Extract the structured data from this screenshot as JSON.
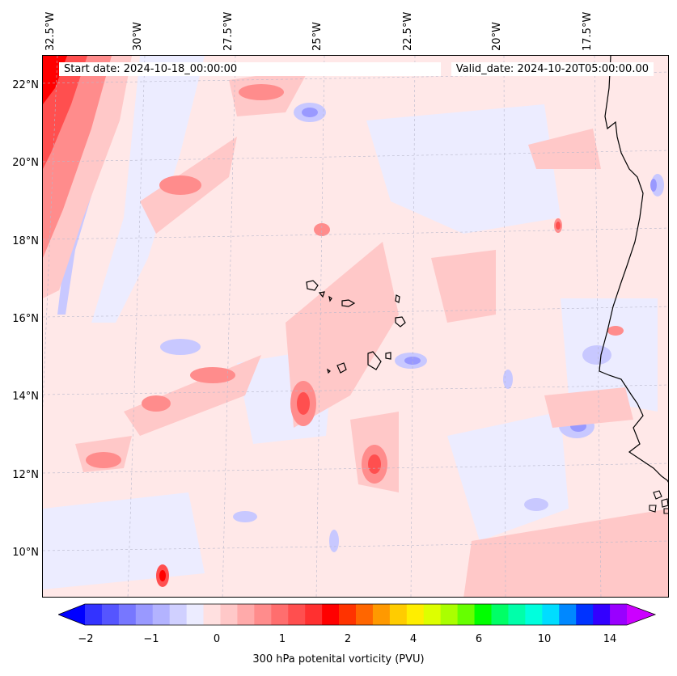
{
  "map": {
    "start_label": "Start date: 2024-10-18_00:00:00",
    "valid_label": "Valid_date: 2024-10-20T05:00:00.00",
    "lat_labels": [
      "22°N",
      "20°N",
      "18°N",
      "16°N",
      "14°N",
      "12°N",
      "10°N"
    ],
    "lon_labels": [
      "32.5°W",
      "30°W",
      "27.5°W",
      "25°W",
      "22.5°W",
      "20°W",
      "17.5°W"
    ]
  },
  "colorbar": {
    "label": "300 hPa potenital vorticity (PVU)",
    "tick_labels": [
      "−2",
      "−1",
      "0",
      "1",
      "2",
      "4",
      "6",
      "10",
      "14"
    ],
    "colors": [
      "#0000ff",
      "#3333ff",
      "#5555ff",
      "#7777ff",
      "#9999ff",
      "#b3b3ff",
      "#d0d0ff",
      "#ececff",
      "#ffe0e0",
      "#ffc8c8",
      "#ffaaaa",
      "#ff8c8c",
      "#ff6e6e",
      "#ff4f4f",
      "#ff3030",
      "#ff0000",
      "#ff3300",
      "#ff6600",
      "#ff9900",
      "#ffcc00",
      "#ffee00",
      "#ddff00",
      "#aaff00",
      "#66ff00",
      "#00ff00",
      "#00ff66",
      "#00ffaa",
      "#00ffdd",
      "#00ddff",
      "#0088ff",
      "#0033ff",
      "#3300ff",
      "#9900ff",
      "#cc00ff"
    ]
  }
}
